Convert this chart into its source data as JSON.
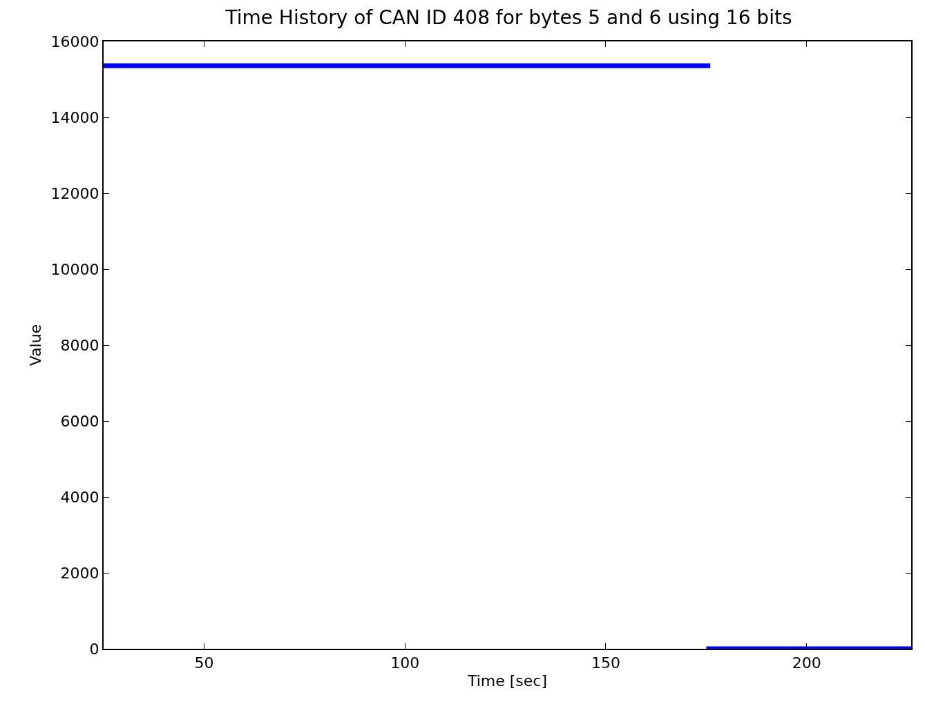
{
  "chart_data": {
    "type": "line",
    "title": "Time History of CAN ID 408 for bytes 5 and 6 using 16 bits",
    "xlabel": "Time [sec]",
    "ylabel": "Value",
    "series": [
      {
        "color": "#0000ff",
        "x": [
          25,
          176
        ],
        "values": [
          15360,
          15360
        ]
      },
      {
        "color": "#0000ff",
        "x": [
          175,
          226
        ],
        "values": [
          0,
          0
        ]
      }
    ],
    "xlim": [
      25,
      226
    ],
    "xticks": [
      50,
      100,
      150,
      200
    ],
    "ylim": [
      0,
      16000
    ],
    "yticks": [
      0,
      2000,
      4000,
      6000,
      8000,
      10000,
      12000,
      14000,
      16000
    ],
    "line_style": "solid"
  }
}
